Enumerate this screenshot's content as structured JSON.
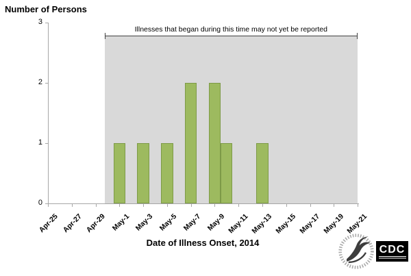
{
  "chart_data": {
    "type": "bar",
    "title": "Number of Persons",
    "xlabel": "Date of Illness Onset, 2014",
    "ylabel": "Number of Persons",
    "ylim": [
      0,
      3
    ],
    "yticks": [
      0,
      1,
      2,
      3
    ],
    "x_axis_start": "Apr-25",
    "x_axis_end": "May-21",
    "x_tick_labels": [
      "Apr-25",
      "Apr-27",
      "Apr-29",
      "May-1",
      "May-3",
      "May-5",
      "May-7",
      "May-9",
      "May-11",
      "May-13",
      "May-15",
      "May-17",
      "May-19",
      "May-21"
    ],
    "bars": [
      {
        "date": "May-1",
        "value": 1
      },
      {
        "date": "May-3",
        "value": 1
      },
      {
        "date": "May-5",
        "value": 1
      },
      {
        "date": "May-7",
        "value": 2
      },
      {
        "date": "May-9",
        "value": 2
      },
      {
        "date": "May-10",
        "value": 1
      },
      {
        "date": "May-13",
        "value": 1
      }
    ],
    "annotation": {
      "text": "Illnesses that began during this time may not yet be reported",
      "start_date": "Apr-30",
      "end_date": "May-21"
    },
    "legend": null,
    "grid": false,
    "colors": {
      "bar_fill": "#9dba5f",
      "bar_border": "#7d9a47",
      "region_fill": "#d9d9d9",
      "axis": "#a6a6a6",
      "bracket": "#404040",
      "text": "#000000"
    }
  },
  "footer": {
    "cdc_logo_text": "CDC",
    "hhs_seal_icon": "hhs-seal"
  }
}
